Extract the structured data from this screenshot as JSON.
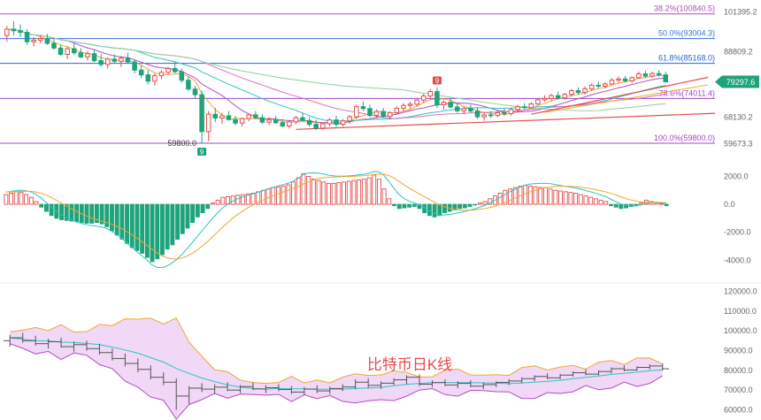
{
  "chart_data": [
    {
      "type": "candlestick",
      "panel": "price",
      "ylim": [
        57000,
        103000
      ],
      "y_axis_ticks": [
        "101395.2",
        "88809.2",
        "68130.2",
        "59673.3"
      ],
      "current_price": "79297.6",
      "colors": {
        "up": "#e34d4d",
        "down": "#1fa37a",
        "price_tag": "#1fa37a"
      },
      "fib_levels": [
        {
          "label": "38.2%(100840.5)",
          "value": 100840.5,
          "color": "#b24cc2"
        },
        {
          "label": "50.0%(93004.3)",
          "value": 93004.3,
          "color": "#3b6fe0"
        },
        {
          "label": "61.8%(85168.0)",
          "value": 85168.0,
          "color": "#2a64d8"
        },
        {
          "label": "78.6%(74011.4)",
          "value": 74011.4,
          "color": "#a148c4"
        },
        {
          "label": "100.0%(59800.0)",
          "value": 59800.0,
          "color": "#a148c4"
        }
      ],
      "low_label": "59800.0",
      "badges": [
        "9",
        "9"
      ],
      "candles": [
        [
          94000,
          97000,
          92000,
          96000
        ],
        [
          96000,
          98500,
          94000,
          95500
        ],
        [
          95500,
          97500,
          93500,
          95000
        ],
        [
          95000,
          96000,
          91000,
          92000
        ],
        [
          92000,
          93500,
          90500,
          92500
        ],
        [
          92500,
          94000,
          91500,
          93000
        ],
        [
          93000,
          94500,
          91000,
          91500
        ],
        [
          91500,
          93000,
          89500,
          90000
        ],
        [
          90000,
          91000,
          87500,
          88000
        ],
        [
          88000,
          90500,
          86500,
          89800
        ],
        [
          89800,
          91500,
          87800,
          88500
        ],
        [
          88500,
          90000,
          86800,
          87200
        ],
        [
          87200,
          89000,
          86000,
          88200
        ],
        [
          88200,
          89500,
          85500,
          86000
        ],
        [
          86000,
          88000,
          84000,
          84800
        ],
        [
          84800,
          87000,
          83500,
          86500
        ],
        [
          86500,
          88000,
          85000,
          85800
        ],
        [
          85800,
          87500,
          84000,
          86800
        ],
        [
          86800,
          88500,
          85200,
          85600
        ],
        [
          85600,
          86500,
          82000,
          83000
        ],
        [
          83000,
          84500,
          80500,
          81500
        ],
        [
          81500,
          83000,
          78500,
          79500
        ],
        [
          79500,
          82000,
          78000,
          81200
        ],
        [
          81200,
          83000,
          80200,
          82300
        ],
        [
          82300,
          84000,
          81500,
          83500
        ],
        [
          83500,
          85500,
          82000,
          82500
        ],
        [
          82500,
          83500,
          79000,
          79800
        ],
        [
          79800,
          81000,
          76500,
          77000
        ],
        [
          77000,
          78000,
          74000,
          75200
        ],
        [
          75200,
          76500,
          59800,
          63500
        ],
        [
          63500,
          70000,
          60500,
          69000
        ],
        [
          69000,
          71000,
          66500,
          67800
        ],
        [
          67800,
          69500,
          66000,
          68500
        ],
        [
          68500,
          70000,
          67000,
          67300
        ],
        [
          67300,
          68500,
          65500,
          66200
        ],
        [
          66200,
          68000,
          65200,
          67600
        ],
        [
          67600,
          69200,
          66800,
          68800
        ],
        [
          68800,
          70000,
          67500,
          67900
        ],
        [
          67900,
          69000,
          66000,
          66500
        ],
        [
          66500,
          68000,
          65500,
          67200
        ],
        [
          67200,
          68500,
          66000,
          66300
        ],
        [
          66300,
          67500,
          64800,
          65300
        ],
        [
          65300,
          67000,
          64500,
          66600
        ],
        [
          66600,
          68500,
          65800,
          67900
        ],
        [
          67900,
          69500,
          66800,
          67000
        ],
        [
          67000,
          68200,
          65000,
          65800
        ],
        [
          65800,
          67300,
          64000,
          64600
        ],
        [
          64600,
          66500,
          64000,
          66000
        ],
        [
          66000,
          67800,
          65200,
          67200
        ],
        [
          67200,
          68500,
          65000,
          65800
        ],
        [
          65800,
          67500,
          65000,
          66900
        ],
        [
          66900,
          68800,
          66000,
          68200
        ],
        [
          68200,
          72000,
          67500,
          71400
        ],
        [
          71400,
          73000,
          70000,
          70800
        ],
        [
          70800,
          72000,
          68000,
          68600
        ],
        [
          68600,
          70500,
          68000,
          69900
        ],
        [
          69900,
          71000,
          67800,
          68300
        ],
        [
          68300,
          70000,
          67500,
          69500
        ],
        [
          69500,
          71500,
          69000,
          70900
        ],
        [
          70900,
          72500,
          70000,
          71800
        ],
        [
          71800,
          73000,
          70800,
          72200
        ],
        [
          72200,
          74000,
          71500,
          73500
        ],
        [
          73500,
          75500,
          72500,
          74800
        ],
        [
          74800,
          77000,
          74000,
          76200
        ],
        [
          76200,
          77500,
          71000,
          72000
        ],
        [
          72000,
          73500,
          70500,
          72800
        ],
        [
          72800,
          74000,
          71000,
          71300
        ],
        [
          71300,
          72500,
          69500,
          70100
        ],
        [
          70100,
          71500,
          69000,
          70800
        ],
        [
          70800,
          72000,
          69500,
          70000
        ],
        [
          70000,
          71200,
          67500,
          68200
        ],
        [
          68200,
          69500,
          67000,
          68800
        ],
        [
          68800,
          70000,
          67800,
          68600
        ],
        [
          68600,
          70200,
          68000,
          69500
        ],
        [
          69500,
          70800,
          68500,
          69200
        ],
        [
          69200,
          71000,
          68500,
          70500
        ],
        [
          70500,
          72000,
          69800,
          71400
        ],
        [
          71400,
          72500,
          70500,
          71100
        ],
        [
          71100,
          72800,
          70800,
          72300
        ],
        [
          72300,
          74200,
          71800,
          73600
        ],
        [
          73600,
          75000,
          73000,
          74000
        ],
        [
          74000,
          75500,
          73200,
          74900
        ],
        [
          74900,
          76200,
          73800,
          74200
        ],
        [
          74200,
          75800,
          73600,
          75300
        ],
        [
          75300,
          77000,
          74600,
          76500
        ],
        [
          76500,
          77500,
          75200,
          75900
        ],
        [
          75900,
          77800,
          75200,
          77100
        ],
        [
          77100,
          78800,
          76500,
          78200
        ],
        [
          78200,
          79500,
          77200,
          77900
        ],
        [
          77900,
          79200,
          77200,
          78600
        ],
        [
          78600,
          80500,
          78200,
          79800
        ],
        [
          79800,
          81000,
          79000,
          80200
        ],
        [
          80200,
          81200,
          79000,
          79600
        ],
        [
          79600,
          81000,
          79000,
          80600
        ],
        [
          80600,
          82500,
          80200,
          81800
        ],
        [
          81800,
          82800,
          80500,
          81100
        ],
        [
          81100,
          82500,
          80500,
          81900
        ],
        [
          81900,
          83000,
          81000,
          81500
        ],
        [
          81500,
          82500,
          79000,
          79300
        ]
      ]
    },
    {
      "type": "bar",
      "panel": "macd",
      "ylim": [
        -5500,
        2600
      ],
      "y_axis_ticks": [
        "2000.0",
        "0.0",
        "-2000.0",
        "-4000.0"
      ],
      "colors": {
        "positive": "#e34d4d",
        "negative": "#1fa37a",
        "dif": "#2ec4c4",
        "dea": "#f0a830"
      },
      "histogram": [
        700,
        800,
        900,
        850,
        700,
        500,
        200,
        -200,
        -500,
        -800,
        -1000,
        -1100,
        -1150,
        -1200,
        -1250,
        -1300,
        -1350,
        -1350,
        -1300,
        -1400,
        -1600,
        -1900,
        -2200,
        -2500,
        -2800,
        -3100,
        -3300,
        -3500,
        -3800,
        -4100,
        -3900,
        -3600,
        -3200,
        -2900,
        -2500,
        -2100,
        -1700,
        -1300,
        -900,
        -600,
        -300,
        100,
        300,
        500,
        550,
        600,
        650,
        700,
        750,
        800,
        900,
        1000,
        1100,
        1200,
        1250,
        1300,
        1400,
        1600,
        1900,
        2200,
        2000,
        1800,
        1700,
        1600,
        1500,
        1500,
        1550,
        1600,
        1650,
        1700,
        1750,
        1800,
        1900,
        2100,
        1800,
        1100,
        400,
        -100,
        -300,
        -250,
        -200,
        -150,
        -300,
        -600,
        -800,
        -900,
        -800,
        -600,
        -500,
        -400,
        -300,
        -250,
        -150,
        -50,
        100,
        200,
        400,
        600,
        800,
        1000,
        1100,
        1200,
        1300,
        1350,
        1300,
        1250,
        1200,
        1200,
        1100,
        1000,
        950,
        900,
        850,
        800,
        700,
        600,
        500,
        400,
        300,
        200,
        -100,
        -200,
        -300,
        -250,
        -150,
        -100,
        100,
        300,
        200,
        100,
        50,
        -100
      ]
    },
    {
      "type": "candlestick",
      "panel": "weekly",
      "title": "比特币日K线",
      "ylim": [
        58000,
        122000
      ],
      "y_axis_ticks": [
        "120000.0",
        "110000.0",
        "100000.0",
        "90000.0",
        "80000.0",
        "70000.0",
        "60000.0"
      ],
      "colors": {
        "band_fill": "#e9c8f2",
        "band_upper": "#f0a830",
        "band_lower": "#b24cc2",
        "mid": "#2ec4c4",
        "title": "#e34d4d"
      },
      "candles": [
        [
          95000,
          98000,
          92000,
          96500
        ],
        [
          96500,
          99000,
          94000,
          95000
        ],
        [
          95000,
          97500,
          92500,
          93500
        ],
        [
          93500,
          96000,
          91000,
          94500
        ],
        [
          94500,
          96500,
          91500,
          92000
        ],
        [
          92000,
          94500,
          89500,
          93000
        ],
        [
          93000,
          95000,
          90000,
          91000
        ],
        [
          91000,
          93500,
          88000,
          89000
        ],
        [
          89000,
          91000,
          85000,
          86000
        ],
        [
          86000,
          88500,
          82000,
          83500
        ],
        [
          83500,
          86000,
          79000,
          80500
        ],
        [
          80500,
          82500,
          75500,
          76500
        ],
        [
          76500,
          79000,
          72500,
          74000
        ],
        [
          74000,
          76000,
          60000,
          67000
        ],
        [
          67000,
          72000,
          63000,
          71000
        ],
        [
          71000,
          73500,
          69000,
          70500
        ],
        [
          70500,
          73000,
          68000,
          71500
        ],
        [
          71500,
          74000,
          69500,
          70000
        ],
        [
          70000,
          72500,
          68500,
          71800
        ],
        [
          71800,
          74000,
          70000,
          70600
        ],
        [
          70600,
          72500,
          68500,
          71200
        ],
        [
          71200,
          73000,
          69500,
          70300
        ],
        [
          70300,
          72000,
          68000,
          69000
        ],
        [
          69000,
          71500,
          67500,
          70500
        ],
        [
          70500,
          72500,
          68500,
          69600
        ],
        [
          69600,
          71800,
          68000,
          70800
        ],
        [
          70800,
          73000,
          69500,
          71600
        ],
        [
          71600,
          75500,
          70500,
          74000
        ],
        [
          74000,
          76000,
          71000,
          72400
        ],
        [
          72400,
          74500,
          70500,
          73500
        ],
        [
          73500,
          76000,
          72500,
          75200
        ],
        [
          75200,
          77500,
          73000,
          76500
        ],
        [
          76500,
          78000,
          72000,
          73000
        ],
        [
          73000,
          75000,
          71500,
          73800
        ],
        [
          73800,
          75500,
          72000,
          72600
        ],
        [
          72600,
          74500,
          71000,
          73400
        ],
        [
          73400,
          75000,
          71500,
          72000
        ],
        [
          72000,
          73800,
          70500,
          72800
        ],
        [
          72800,
          74500,
          71500,
          73900
        ],
        [
          73900,
          75500,
          72500,
          74600
        ],
        [
          74600,
          76500,
          73500,
          75800
        ],
        [
          75800,
          77500,
          74500,
          76900
        ],
        [
          76900,
          78500,
          75500,
          76200
        ],
        [
          76200,
          78200,
          75500,
          77600
        ],
        [
          77600,
          79500,
          76800,
          78800
        ],
        [
          78800,
          80500,
          77500,
          78100
        ],
        [
          78100,
          80000,
          77500,
          79400
        ],
        [
          79400,
          81500,
          78500,
          80800
        ],
        [
          80800,
          82500,
          79500,
          80200
        ],
        [
          80200,
          82000,
          79800,
          81500
        ],
        [
          81500,
          83000,
          80500,
          82200
        ],
        [
          82200,
          83500,
          80000,
          80800
        ]
      ]
    }
  ]
}
